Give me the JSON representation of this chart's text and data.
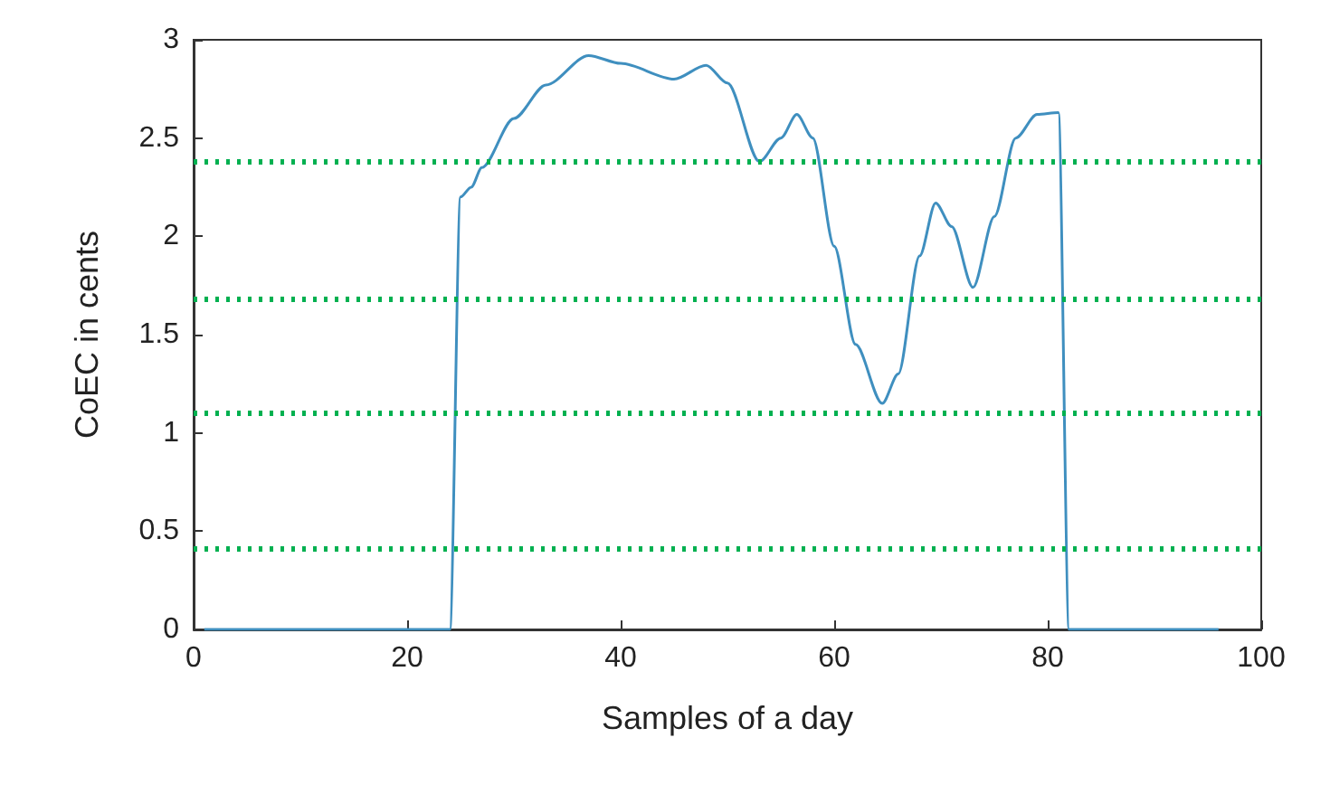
{
  "chart_data": {
    "type": "line",
    "xlabel": "Samples of a day",
    "ylabel": "CoEC in cents",
    "x": [
      1,
      5,
      10,
      15,
      20,
      24,
      25,
      26,
      27,
      30,
      33,
      37,
      40,
      45,
      48,
      50,
      53,
      55,
      56.5,
      58,
      60,
      62,
      64.5,
      66,
      68,
      69.5,
      71,
      73,
      75,
      77,
      79,
      81,
      82,
      85,
      90,
      96
    ],
    "series": [
      {
        "color": "#3f8fbf",
        "values": [
          0,
          0,
          0,
          0,
          0,
          0,
          2.2,
          2.25,
          2.35,
          2.6,
          2.77,
          2.92,
          2.88,
          2.8,
          2.87,
          2.78,
          2.38,
          2.5,
          2.62,
          2.5,
          1.95,
          1.45,
          1.15,
          1.3,
          1.9,
          2.17,
          2.05,
          1.74,
          2.1,
          2.5,
          2.62,
          2.63,
          0,
          0,
          0,
          0
        ]
      }
    ],
    "xlim": [
      0,
      100
    ],
    "xticks": [
      0,
      20,
      40,
      60,
      80,
      100
    ],
    "ylim": [
      0,
      3
    ],
    "yticks": [
      0,
      0.5,
      1,
      1.5,
      2,
      2.5,
      3
    ],
    "grid": false,
    "marker": "none",
    "line_style": "solid",
    "ref_lines": [
      {
        "axis": "y",
        "value": 2.38,
        "color": "#00b050",
        "line_style": "dotted"
      },
      {
        "axis": "y",
        "value": 1.68,
        "color": "#00b050",
        "line_style": "dotted"
      },
      {
        "axis": "y",
        "value": 1.105,
        "color": "#00b050",
        "line_style": "dotted"
      },
      {
        "axis": "y",
        "value": 0.41,
        "color": "#00b050",
        "line_style": "dotted"
      }
    ]
  }
}
